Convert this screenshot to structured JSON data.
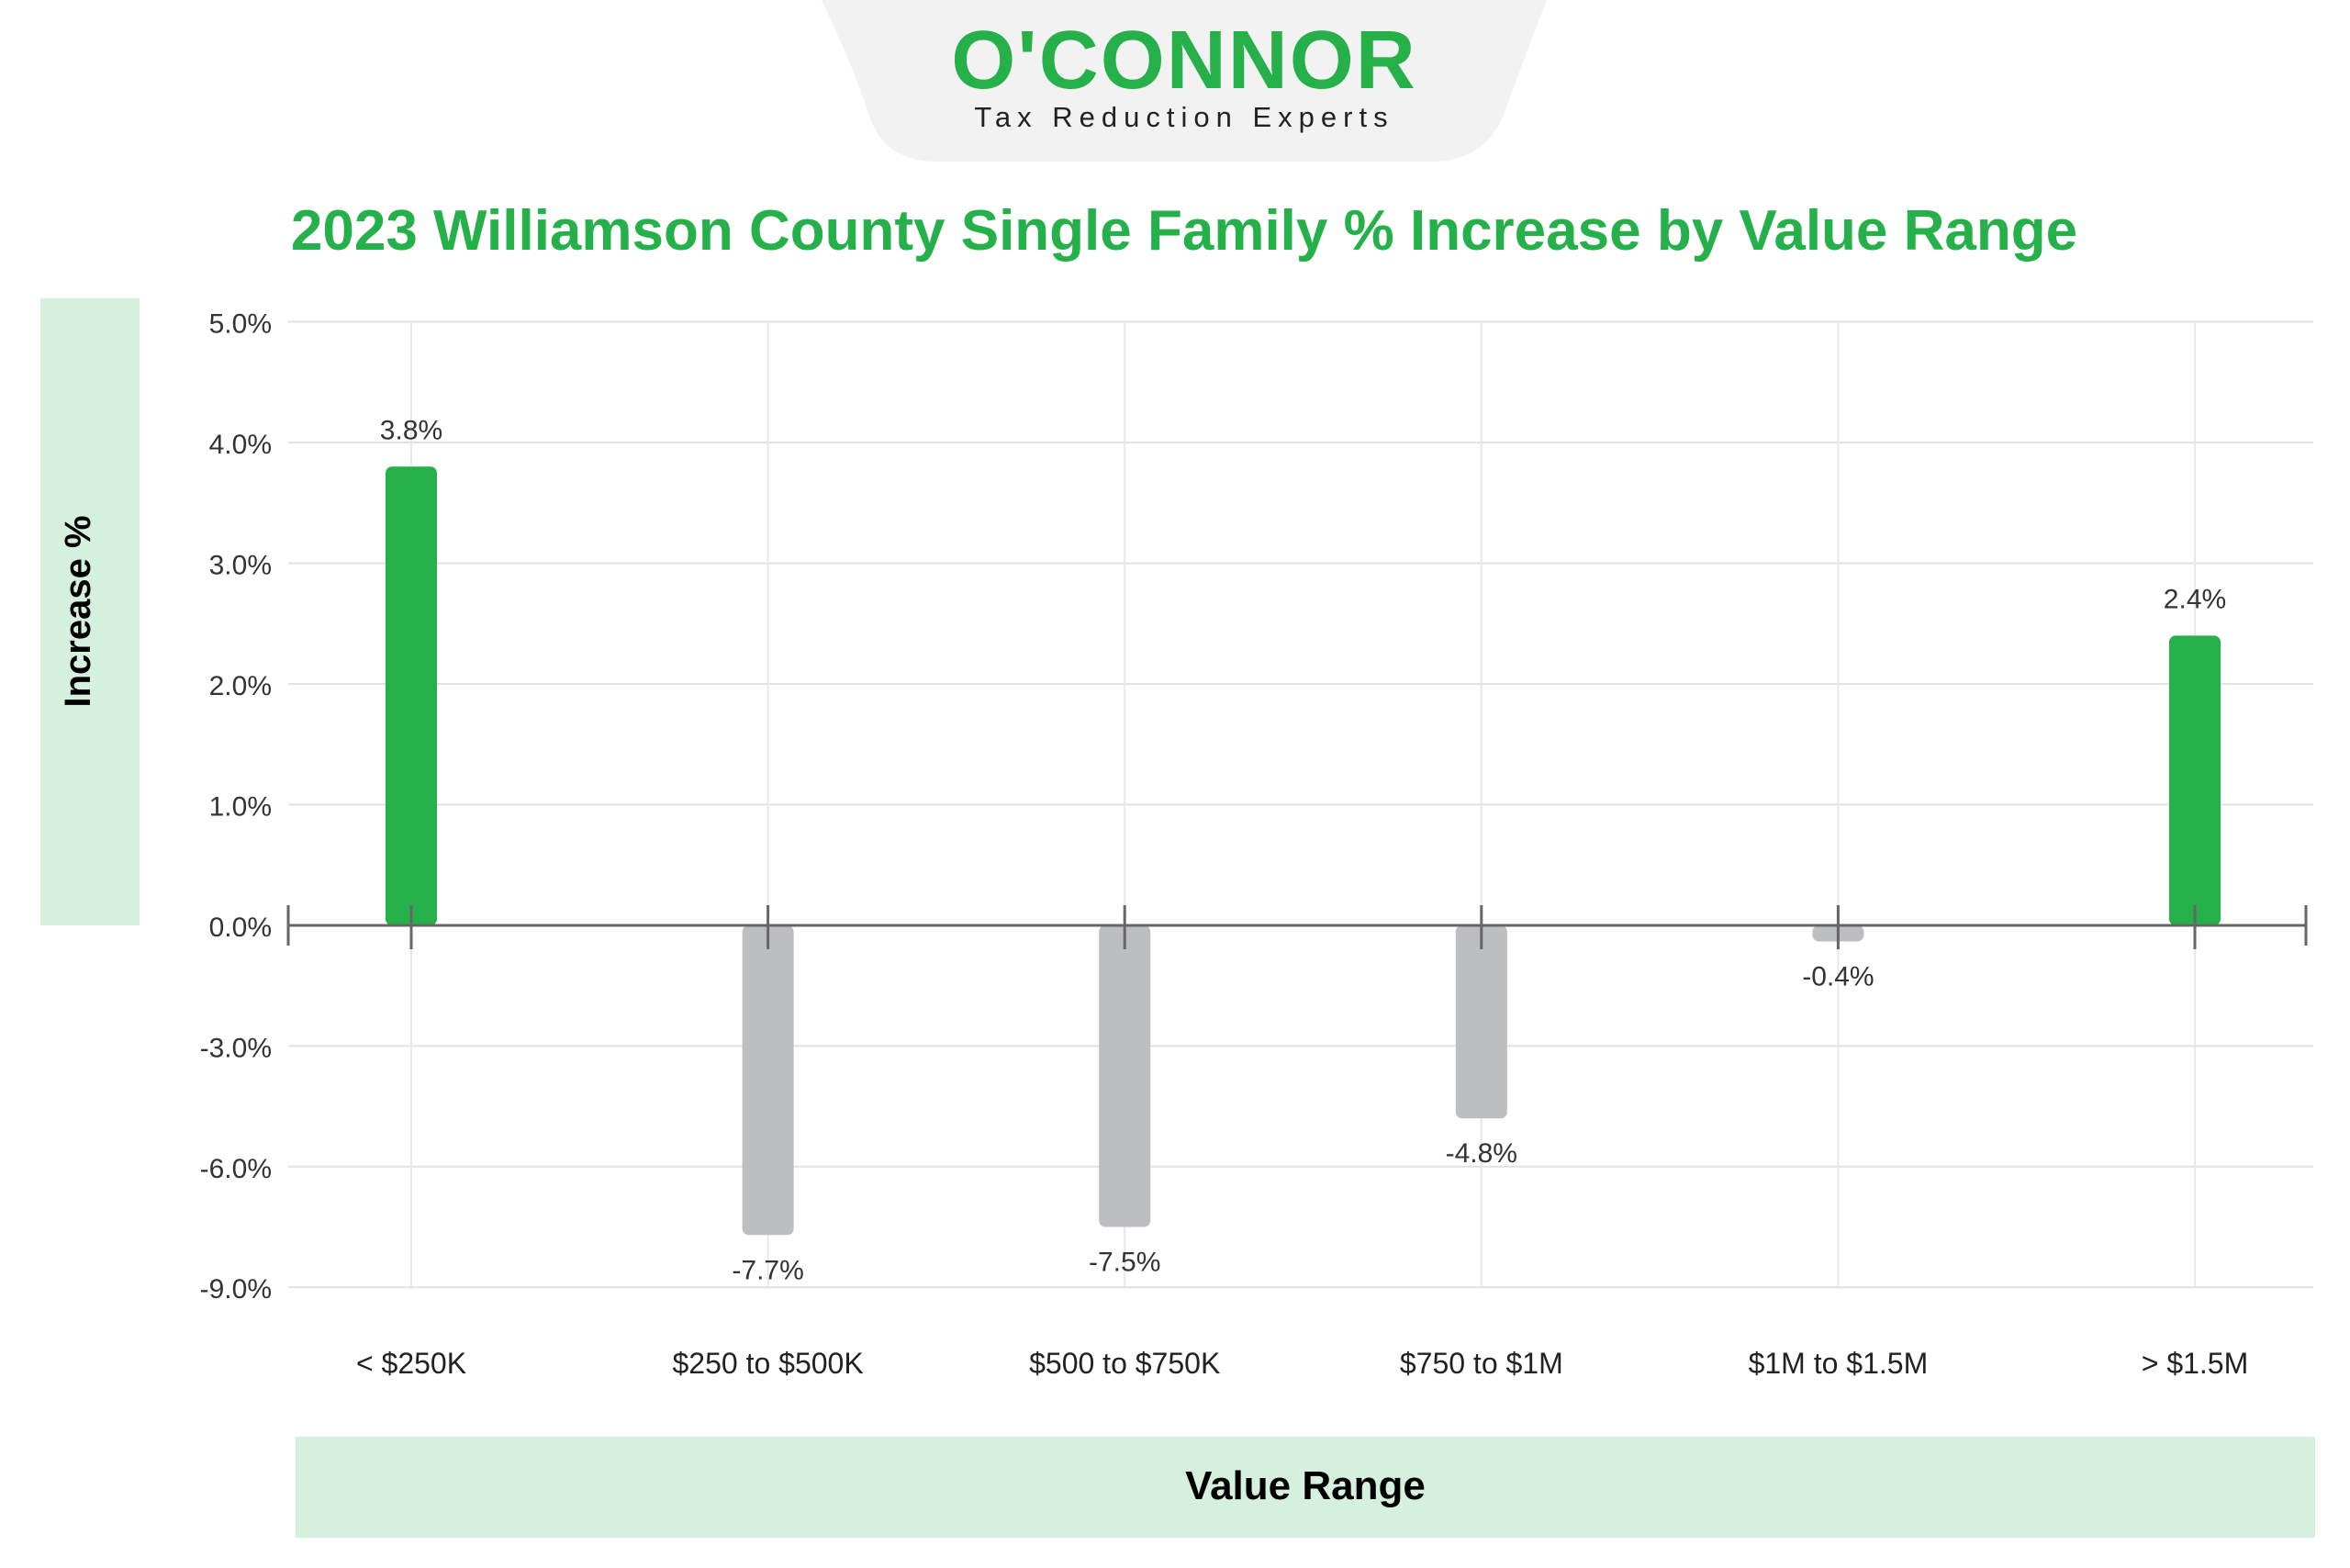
{
  "header": {
    "brand": "O'CONNOR",
    "tagline": "Tax Reduction Experts"
  },
  "colors": {
    "positive": "#25b04a",
    "negative": "#bdbec0",
    "title": "#25b04a",
    "label_panel": "#d5f0dd",
    "header_tab": "#f2f2f2"
  },
  "chart_data": {
    "type": "bar",
    "title": "2023 Williamson County Single Family % Increase by Value Range",
    "xlabel": "Value Range",
    "ylabel": "Increase %",
    "categories": [
      "< $250K",
      "$250 to $500K",
      "$500 to $750K",
      "$750 to $1M",
      "$1M to $1.5M",
      "> $1.5M"
    ],
    "values": [
      3.8,
      -7.7,
      -7.5,
      -4.8,
      -0.4,
      2.4
    ],
    "data_labels": [
      "3.8%",
      "-7.7%",
      "-7.5%",
      "-4.8%",
      "-0.4%",
      "2.4%"
    ],
    "y_ticks": [
      5.0,
      4.0,
      3.0,
      2.0,
      1.0,
      0.0,
      -3.0,
      -6.0,
      -9.0
    ],
    "y_tick_labels": [
      "5.0%",
      "4.0%",
      "3.0%",
      "2.0%",
      "1.0%",
      "0.0%",
      "-3.0%",
      "-6.0%",
      "-9.0%"
    ],
    "ylim": [
      -9,
      5
    ],
    "y_scale_note": "positive and negative sides use different scales",
    "grid": true,
    "legend": "none"
  }
}
